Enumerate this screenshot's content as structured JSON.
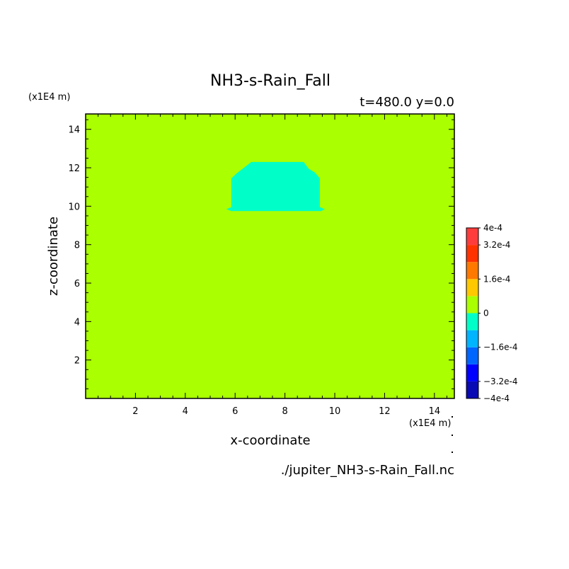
{
  "chart_data": {
    "type": "heatmap",
    "title": "NH3-s-Rain_Fall",
    "subtitle": "t=480.0 y=0.0",
    "xlabel": "x-coordinate",
    "ylabel": "z-coordinate",
    "x_unit": "(x1E4 m)",
    "y_unit": "(x1E4 m)",
    "xlim": [
      0,
      14.8
    ],
    "ylim": [
      0,
      14.8
    ],
    "x_ticks": [
      2,
      4,
      6,
      8,
      10,
      12,
      14
    ],
    "y_ticks": [
      2,
      4,
      6,
      8,
      10,
      12,
      14
    ],
    "x_tick_labels": [
      "2",
      "4",
      "6",
      "8",
      "10",
      "12",
      "14"
    ],
    "y_tick_labels": [
      "2",
      "4",
      "6",
      "8",
      "10",
      "12",
      "14"
    ],
    "background_value_range": [
      0,
      8e-05
    ],
    "regions": [
      {
        "value_range": [
          -8e-05,
          0
        ],
        "color": "#00ffc8",
        "outline": [
          [
            5.65,
            9.85
          ],
          [
            5.85,
            9.75
          ],
          [
            9.45,
            9.75
          ],
          [
            9.6,
            9.85
          ],
          [
            9.4,
            9.95
          ],
          [
            9.4,
            11.45
          ],
          [
            9.2,
            11.75
          ],
          [
            8.95,
            11.95
          ],
          [
            8.75,
            12.3
          ],
          [
            6.65,
            12.3
          ],
          [
            6.35,
            12.0
          ],
          [
            6.05,
            11.7
          ],
          [
            5.85,
            11.45
          ],
          [
            5.85,
            9.95
          ]
        ]
      }
    ],
    "colorbar": {
      "levels": [
        -0.0004,
        -0.00032,
        -0.00024,
        -0.00016,
        -8e-05,
        0,
        8e-05,
        0.00016,
        0.00024,
        0.00032,
        0.0004
      ],
      "colors": [
        "#0a0ab4",
        "#0000ff",
        "#0064ff",
        "#00b4ff",
        "#00ffc8",
        "#aaff00",
        "#ffc800",
        "#ff7800",
        "#ff3200",
        "#ff3c3c"
      ],
      "tick_values": [
        0.0004,
        0.00032,
        0.00016,
        0,
        -0.00016,
        -0.00032,
        -0.0004
      ],
      "tick_labels": [
        "4e-4",
        "3.2e-4",
        "1.6e-4",
        "0",
        "−1.6e-4",
        "−3.2e-4",
        "−4e-4"
      ]
    },
    "footer": "./jupiter_NH3-s-Rain_Fall.nc",
    "grid": false
  }
}
